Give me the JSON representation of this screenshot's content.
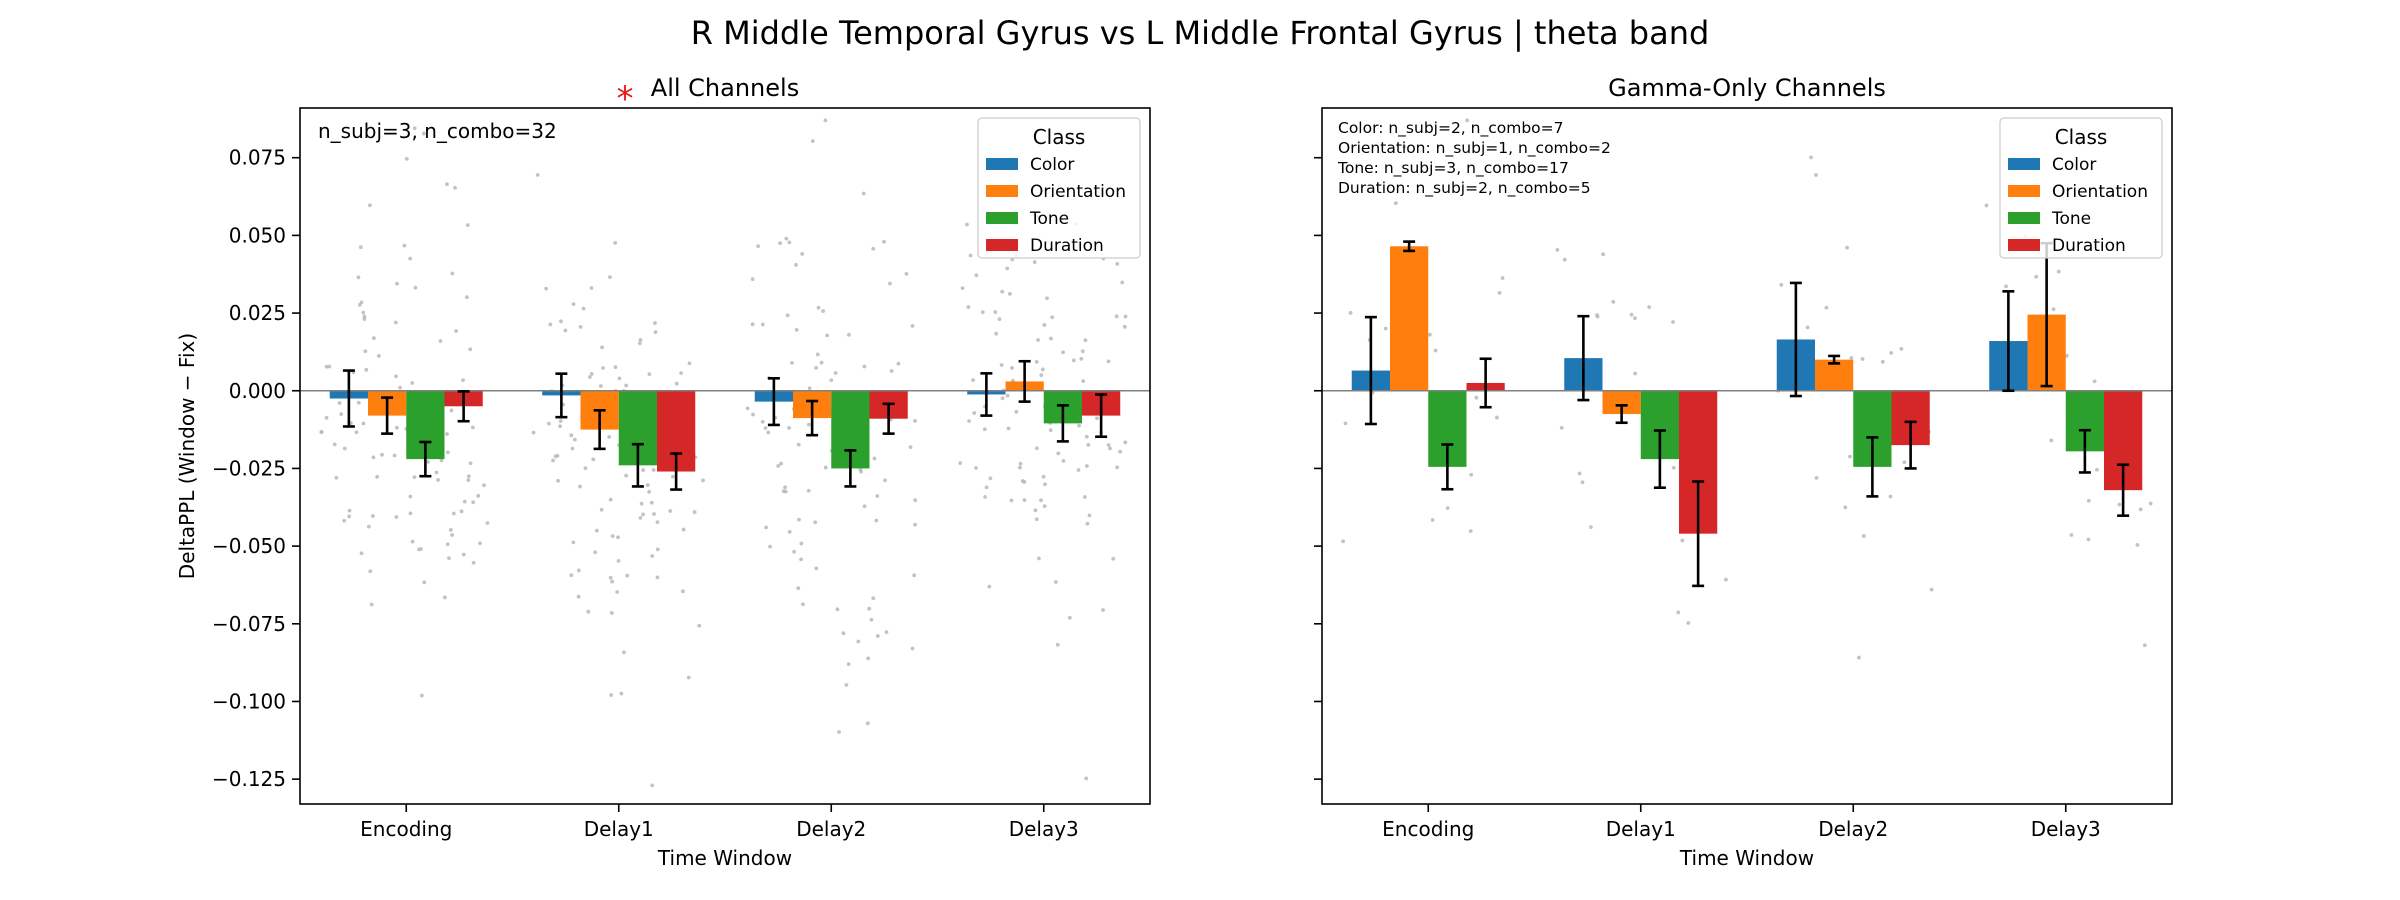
{
  "figure": {
    "suptitle": "R Middle Temporal Gyrus vs L Middle Frontal Gyrus  |  theta band"
  },
  "chart_data": [
    {
      "type": "bar",
      "title": "All Channels",
      "significance_marker": "*",
      "xlabel": "Time Window",
      "ylabel": "DeltaPPL (Window − Fix)",
      "categories": [
        "Encoding",
        "Delay1",
        "Delay2",
        "Delay3"
      ],
      "ylim": [
        -0.133,
        0.091
      ],
      "yticks": [
        0.075,
        0.05,
        0.025,
        0.0,
        -0.025,
        -0.05,
        -0.075,
        -0.1,
        -0.125
      ],
      "ytick_labels": [
        "0.075",
        "0.050",
        "0.025",
        "0.000",
        "−0.025",
        "−0.050",
        "−0.075",
        "−0.100",
        "−0.125"
      ],
      "annotation": [
        "n_subj=3, n_combo=32"
      ],
      "legend": {
        "title": "Class",
        "placement": "upper-right"
      },
      "series": [
        {
          "name": "Color",
          "color": "#1f77b4",
          "values": [
            -0.0025,
            -0.0015,
            -0.0035,
            -0.0012
          ],
          "errors": [
            0.009,
            0.007,
            0.0075,
            0.0068
          ]
        },
        {
          "name": "Orientation",
          "color": "#ff7f0e",
          "values": [
            -0.008,
            -0.0125,
            -0.0088,
            0.003
          ],
          "errors": [
            0.0058,
            0.0062,
            0.0055,
            0.0065
          ]
        },
        {
          "name": "Tone",
          "color": "#2ca02c",
          "values": [
            -0.022,
            -0.024,
            -0.025,
            -0.0105
          ],
          "errors": [
            0.0055,
            0.0068,
            0.0058,
            0.0058
          ]
        },
        {
          "name": "Duration",
          "color": "#d62728",
          "values": [
            -0.005,
            -0.026,
            -0.009,
            -0.008
          ],
          "errors": [
            0.0048,
            0.0058,
            0.0048,
            0.0068
          ]
        }
      ],
      "jitter_color": "#b8b8b8"
    },
    {
      "type": "bar",
      "title": "Gamma-Only Channels",
      "xlabel": "Time Window",
      "ylabel": "",
      "categories": [
        "Encoding",
        "Delay1",
        "Delay2",
        "Delay3"
      ],
      "ylim": [
        -0.133,
        0.091
      ],
      "yticks": [
        0.075,
        0.05,
        0.025,
        0.0,
        -0.025,
        -0.05,
        -0.075,
        -0.1,
        -0.125
      ],
      "ytick_labels": [],
      "annotation": [
        "Color: n_subj=2, n_combo=7",
        "Orientation: n_subj=1, n_combo=2",
        "Tone: n_subj=3, n_combo=17",
        "Duration: n_subj=2, n_combo=5"
      ],
      "legend": {
        "title": "Class",
        "placement": "upper-right"
      },
      "series": [
        {
          "name": "Color",
          "color": "#1f77b4",
          "values": [
            0.0065,
            0.0105,
            0.0165,
            0.016
          ],
          "errors": [
            0.0172,
            0.0135,
            0.0182,
            0.016
          ]
        },
        {
          "name": "Orientation",
          "color": "#ff7f0e",
          "values": [
            0.0465,
            -0.0075,
            0.01,
            0.0245
          ],
          "errors": [
            0.0015,
            0.0028,
            0.0012,
            0.023
          ]
        },
        {
          "name": "Tone",
          "color": "#2ca02c",
          "values": [
            -0.0245,
            -0.022,
            -0.0245,
            -0.0195
          ],
          "errors": [
            0.0072,
            0.0092,
            0.0095,
            0.0068
          ]
        },
        {
          "name": "Duration",
          "color": "#d62728",
          "values": [
            0.0025,
            -0.046,
            -0.0175,
            -0.032
          ],
          "errors": [
            0.0078,
            0.0168,
            0.0075,
            0.0082
          ]
        }
      ],
      "jitter_color": "#b8b8b8"
    }
  ]
}
